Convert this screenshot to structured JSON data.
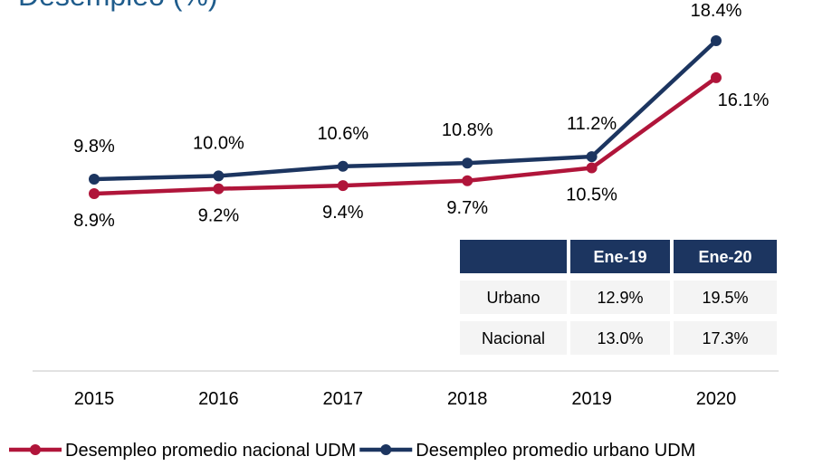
{
  "chart_data": {
    "type": "line",
    "title": "Desempleo (%)",
    "categories": [
      "2015",
      "2016",
      "2017",
      "2018",
      "2019",
      "2020"
    ],
    "series": [
      {
        "name": "Desempleo promedio nacional UDM",
        "color": "#b0153a",
        "values": [
          8.9,
          9.2,
          9.4,
          9.7,
          10.5,
          16.1
        ],
        "value_labels": [
          "8.9%",
          "9.2%",
          "9.4%",
          "9.7%",
          "10.5%",
          "16.1%"
        ]
      },
      {
        "name": "Desempleo promedio urbano UDM",
        "color": "#1c3560",
        "values": [
          9.8,
          10.0,
          10.6,
          10.8,
          11.2,
          18.4
        ],
        "value_labels": [
          "9.8%",
          "10.0%",
          "10.6%",
          "10.8%",
          "11.2%",
          "18.4%"
        ]
      }
    ],
    "legend": "bottom"
  },
  "table": {
    "columns": [
      "Ene-19",
      "Ene-20"
    ],
    "rows": [
      {
        "label": "Urbano",
        "values": [
          "12.9%",
          "19.5%"
        ]
      },
      {
        "label": "Nacional",
        "values": [
          "13.0%",
          "17.3%"
        ]
      }
    ]
  }
}
